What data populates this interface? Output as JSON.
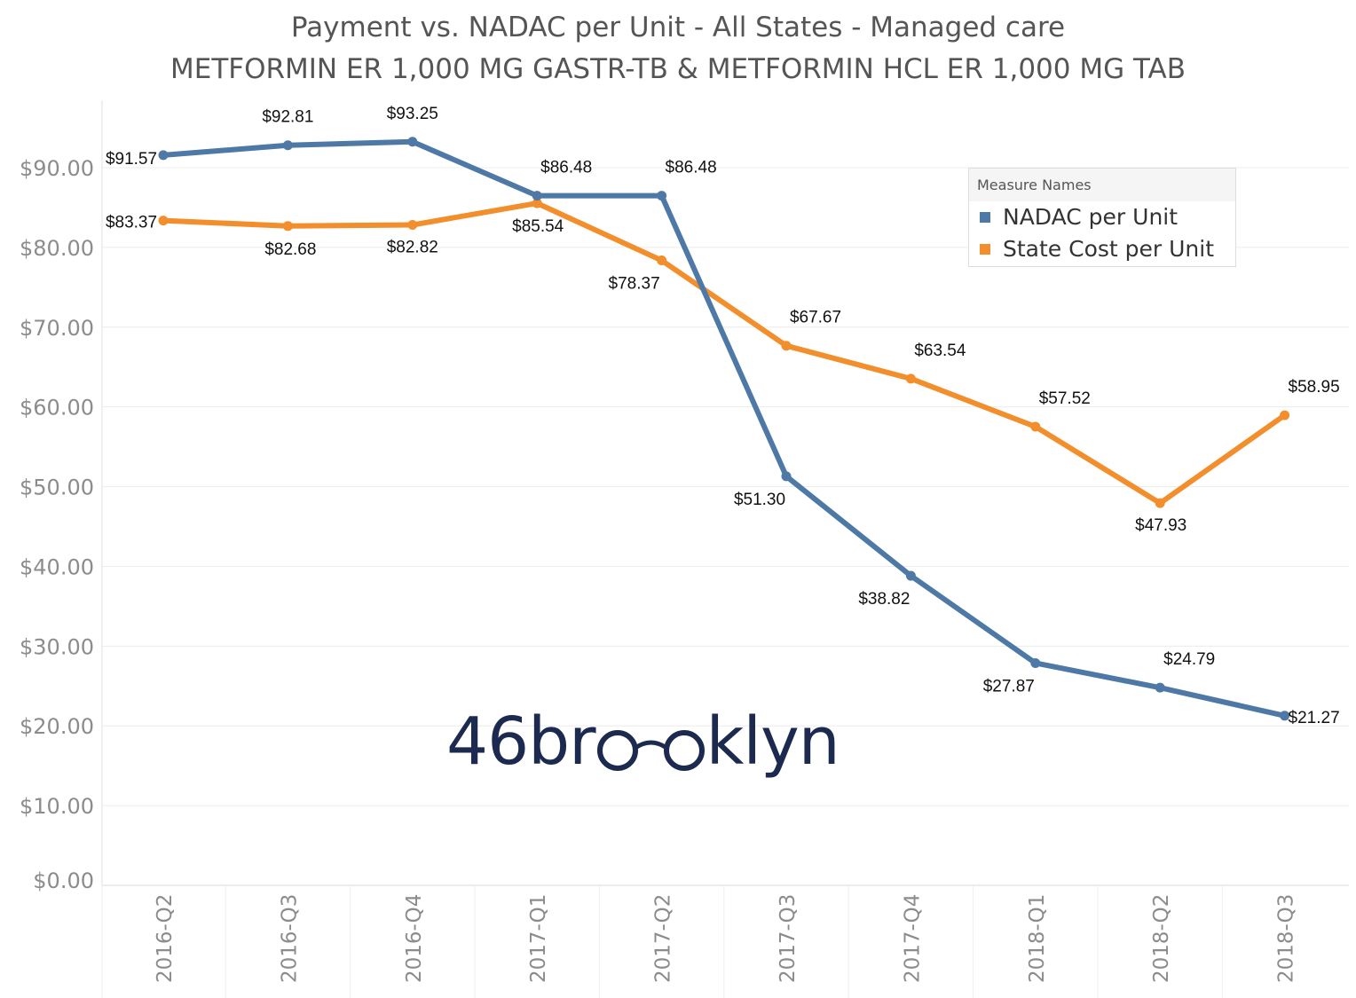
{
  "title_line1": "Payment vs. NADAC per Unit - All States - Managed care",
  "title_line2": "METFORMIN ER 1,000 MG GASTR-TB & METFORMIN HCL ER 1,000 MG TAB",
  "legend": {
    "header": "Measure Names",
    "items": [
      {
        "label": "NADAC per Unit",
        "color": "#4e79a7"
      },
      {
        "label": "State Cost per Unit",
        "color": "#f28e2b"
      }
    ]
  },
  "logo": {
    "text_left": "46br",
    "text_right": "klyn",
    "color": "#1b2a4e"
  },
  "chart_data": {
    "type": "line",
    "categories": [
      "2016-Q2",
      "2016-Q3",
      "2016-Q4",
      "2017-Q1",
      "2017-Q2",
      "2017-Q3",
      "2017-Q4",
      "2018-Q1",
      "2018-Q2",
      "2018-Q3"
    ],
    "series": [
      {
        "name": "NADAC per Unit",
        "color": "#4e79a7",
        "values": [
          91.57,
          92.81,
          93.25,
          86.48,
          86.48,
          51.3,
          38.82,
          27.87,
          24.79,
          21.27
        ],
        "labels": [
          "$91.57",
          "$92.81",
          "$93.25",
          "$86.48",
          "$86.48",
          "$51.30",
          "$38.82",
          "$27.87",
          "$24.79",
          "$21.27"
        ]
      },
      {
        "name": "State Cost per Unit",
        "color": "#f28e2b",
        "values": [
          83.37,
          82.68,
          82.82,
          85.54,
          78.37,
          67.67,
          63.54,
          57.52,
          47.93,
          58.95
        ],
        "labels": [
          "$83.37",
          "$82.68",
          "$82.82",
          "$85.54",
          "$78.37",
          "$67.67",
          "$63.54",
          "$57.52",
          "$47.93",
          "$58.95"
        ]
      }
    ],
    "y_ticks": [
      0,
      10,
      20,
      30,
      40,
      50,
      60,
      70,
      80,
      90
    ],
    "y_tick_labels": [
      "$0.00",
      "$10.00",
      "$20.00",
      "$30.00",
      "$40.00",
      "$50.00",
      "$60.00",
      "$70.00",
      "$80.00",
      "$90.00"
    ],
    "ylim": [
      0,
      90
    ],
    "xlabel": "",
    "ylabel": "",
    "grid": true,
    "legend_position": "top-right"
  }
}
